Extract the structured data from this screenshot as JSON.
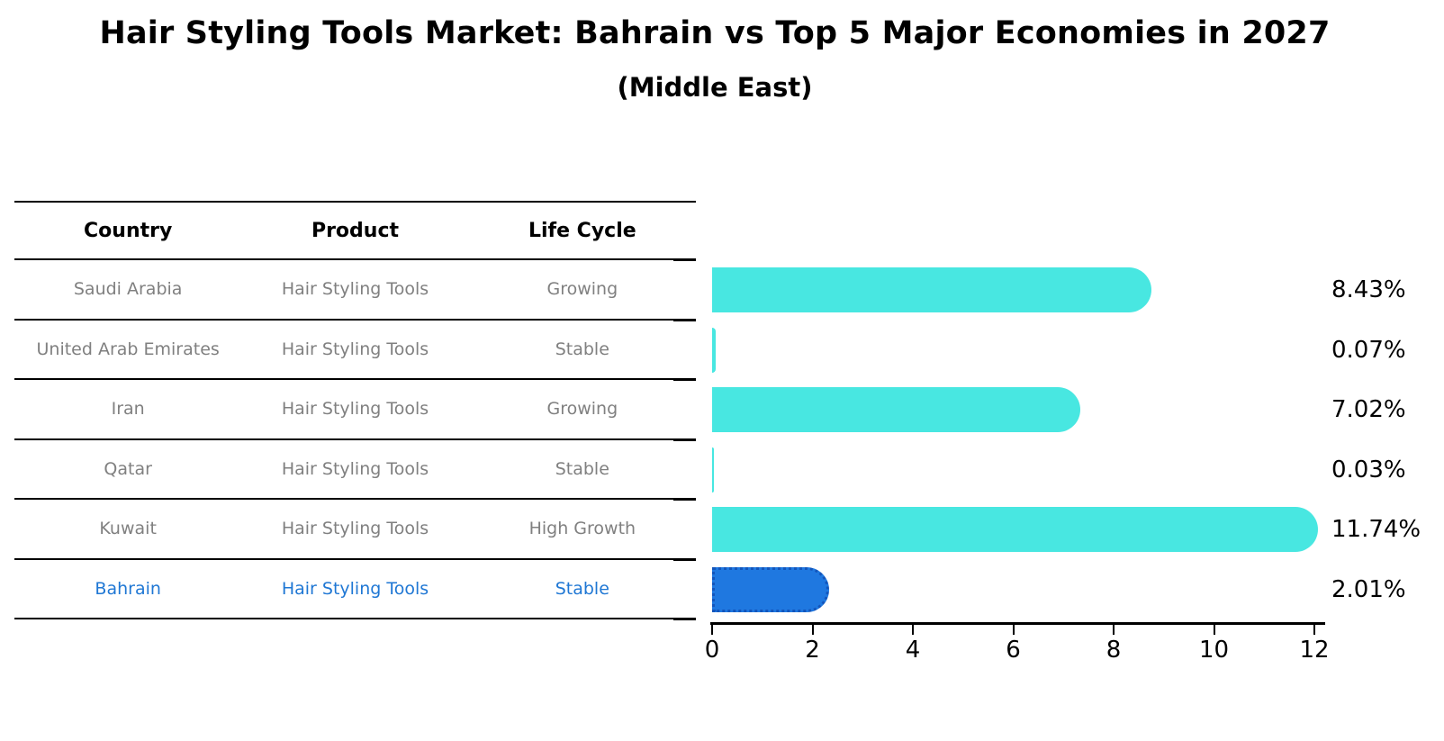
{
  "title": "Hair Styling Tools Market: Bahrain vs Top 5 Major Economies in 2027",
  "subtitle": "(Middle East)",
  "table": {
    "headers": [
      "Country",
      "Product",
      "Life Cycle"
    ],
    "rows": [
      {
        "country": "Saudi Arabia",
        "product": "Hair Styling Tools",
        "life_cycle": "Growing",
        "highlight": false
      },
      {
        "country": "United Arab Emirates",
        "product": "Hair Styling Tools",
        "life_cycle": "Stable",
        "highlight": false
      },
      {
        "country": "Iran",
        "product": "Hair Styling Tools",
        "life_cycle": "Growing",
        "highlight": false
      },
      {
        "country": "Qatar",
        "product": "Hair Styling Tools",
        "life_cycle": "Stable",
        "highlight": false
      },
      {
        "country": "Kuwait",
        "product": "Hair Styling Tools",
        "life_cycle": "High Growth",
        "highlight": false
      },
      {
        "country": "Bahrain",
        "product": "Hair Styling Tools",
        "life_cycle": "Stable",
        "highlight": true
      }
    ]
  },
  "chart_data": {
    "type": "bar",
    "orientation": "horizontal",
    "title": "Hair Styling Tools Market: Bahrain vs Top 5 Major Economies in 2027 (Middle East)",
    "categories": [
      "Saudi Arabia",
      "United Arab Emirates",
      "Iran",
      "Qatar",
      "Kuwait",
      "Bahrain"
    ],
    "values": [
      8.43,
      0.07,
      7.02,
      0.03,
      11.74,
      2.01
    ],
    "value_labels": [
      "8.43%",
      "0.07%",
      "7.02%",
      "0.03%",
      "11.74%",
      "2.01%"
    ],
    "unit": "percent",
    "xlim": [
      0,
      12
    ],
    "xticks": [
      0,
      2,
      4,
      6,
      8,
      10,
      12
    ],
    "grid": false,
    "legend": "none",
    "bar_color": "#48E7E1",
    "highlight_bar_color": "#1F78E0",
    "highlight_bar_border_color": "#1356BC",
    "highlight_index": 5
  },
  "colors": {
    "row_text": "#808080",
    "highlight_text": "#1F77D4",
    "header_text": "#000000",
    "axis": "#000000"
  }
}
